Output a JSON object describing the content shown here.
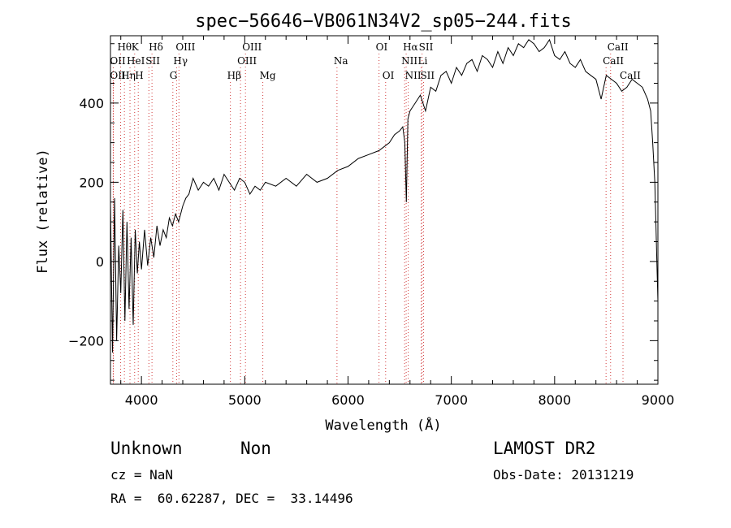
{
  "chart_data": {
    "type": "line",
    "title": "spec−56646−VB061N34V2_sp05−244.fits",
    "xlabel": "Wavelength (Å)",
    "ylabel": "Flux (relative)",
    "xlim": [
      3700,
      9000
    ],
    "ylim": [
      -310,
      570
    ],
    "xticks": [
      4000,
      5000,
      6000,
      7000,
      8000,
      9000
    ],
    "yticks": [
      -200,
      0,
      200,
      400
    ],
    "ytick_labels": [
      "−200",
      "0",
      "200",
      "400"
    ],
    "series": [
      {
        "x": [
          3700,
          3720,
          3740,
          3760,
          3780,
          3800,
          3820,
          3840,
          3860,
          3880,
          3900,
          3920,
          3940,
          3960,
          3980,
          4000,
          4030,
          4060,
          4090,
          4120,
          4150,
          4180,
          4210,
          4240,
          4270,
          4300,
          4330,
          4360,
          4400,
          4430,
          4460,
          4500,
          4550,
          4600,
          4650,
          4700,
          4750,
          4800,
          4850,
          4900,
          4950,
          5000,
          5050,
          5100,
          5150,
          5200,
          5300,
          5400,
          5500,
          5600,
          5700,
          5800,
          5900,
          6000,
          6100,
          6200,
          6300,
          6400,
          6450,
          6500,
          6530,
          6550,
          6565,
          6580,
          6600,
          6650,
          6700,
          6750,
          6800,
          6850,
          6900,
          6950,
          7000,
          7050,
          7100,
          7150,
          7200,
          7250,
          7300,
          7350,
          7400,
          7450,
          7500,
          7550,
          7600,
          7650,
          7700,
          7750,
          7800,
          7850,
          7900,
          7950,
          8000,
          8050,
          8100,
          8150,
          8200,
          8250,
          8300,
          8350,
          8400,
          8450,
          8500,
          8550,
          8600,
          8650,
          8700,
          8750,
          8800,
          8850,
          8900,
          8930,
          8950,
          8970,
          8980,
          8990,
          9000
        ],
        "y": [
          150,
          -230,
          160,
          -200,
          40,
          -80,
          130,
          -150,
          100,
          -120,
          60,
          -160,
          80,
          -30,
          50,
          -20,
          80,
          -10,
          60,
          10,
          90,
          40,
          80,
          60,
          110,
          90,
          120,
          100,
          140,
          160,
          170,
          210,
          180,
          200,
          190,
          210,
          180,
          220,
          200,
          180,
          210,
          200,
          170,
          190,
          180,
          200,
          190,
          210,
          190,
          220,
          200,
          210,
          230,
          240,
          260,
          270,
          280,
          300,
          320,
          330,
          340,
          300,
          150,
          360,
          380,
          400,
          420,
          380,
          440,
          430,
          470,
          480,
          450,
          490,
          470,
          500,
          510,
          480,
          520,
          510,
          490,
          530,
          500,
          540,
          520,
          550,
          540,
          560,
          550,
          530,
          540,
          560,
          520,
          510,
          530,
          500,
          490,
          510,
          480,
          470,
          460,
          410,
          470,
          460,
          450,
          430,
          440,
          460,
          450,
          440,
          410,
          380,
          300,
          200,
          100,
          0,
          -100
        ]
      }
    ],
    "lines": [
      {
        "label": "Hθ",
        "x": 3798,
        "row": 1
      },
      {
        "label": "K",
        "x": 3934,
        "row": 1
      },
      {
        "label": "Hδ",
        "x": 4102,
        "row": 1
      },
      {
        "label": "OIII",
        "x": 4363,
        "row": 1
      },
      {
        "label": "OIII",
        "x": 5007,
        "row": 1
      },
      {
        "label": "OI",
        "x": 6300,
        "row": 1
      },
      {
        "label": "Hα",
        "x": 6563,
        "row": 1
      },
      {
        "label": "SII",
        "x": 6717,
        "row": 1
      },
      {
        "label": "CaII",
        "x": 8542,
        "row": 1
      },
      {
        "label": "OII",
        "x": 3727,
        "row": 2
      },
      {
        "label": "HeI",
        "x": 3889,
        "row": 2
      },
      {
        "label": "SII",
        "x": 4072,
        "row": 2
      },
      {
        "label": "Hγ",
        "x": 4340,
        "row": 2
      },
      {
        "label": "OIII",
        "x": 4959,
        "row": 2
      },
      {
        "label": "Na",
        "x": 5893,
        "row": 2
      },
      {
        "label": "NII",
        "x": 6548,
        "row": 2
      },
      {
        "label": "Li",
        "x": 6708,
        "row": 2
      },
      {
        "label": "CaII",
        "x": 8498,
        "row": 2
      },
      {
        "label": "OII",
        "x": 3727,
        "row": 3
      },
      {
        "label": "Hη",
        "x": 3835,
        "row": 3
      },
      {
        "label": "H",
        "x": 3969,
        "row": 3
      },
      {
        "label": "G",
        "x": 4304,
        "row": 3
      },
      {
        "label": "Hβ",
        "x": 4861,
        "row": 3
      },
      {
        "label": "Mg",
        "x": 5175,
        "row": 3
      },
      {
        "label": "OI",
        "x": 6364,
        "row": 3
      },
      {
        "label": "NII",
        "x": 6583,
        "row": 3
      },
      {
        "label": "SII",
        "x": 6731,
        "row": 3
      },
      {
        "label": "CaII",
        "x": 8662,
        "row": 3
      }
    ]
  },
  "info": {
    "class": "Unknown",
    "subclass": "Non",
    "survey": "LAMOST DR2",
    "cz": "cz = NaN",
    "obsdate": "Obs-Date: 20131219",
    "coords": "RA =  60.62287, DEC =  33.14496"
  }
}
